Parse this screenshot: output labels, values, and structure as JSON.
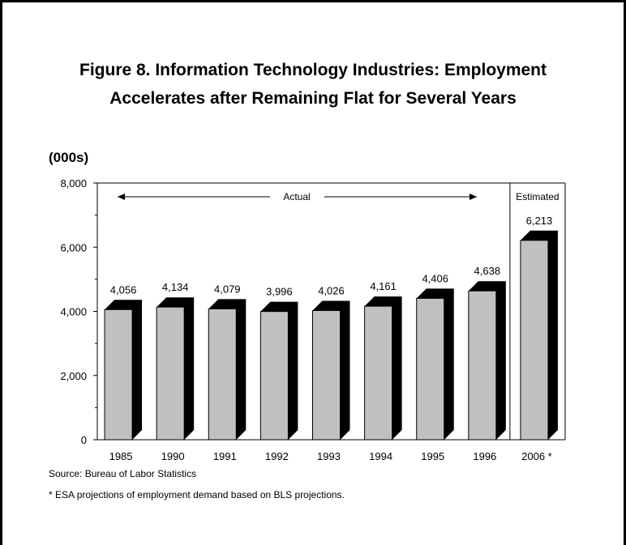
{
  "title_lines": [
    "Figure 8.  Information Technology Industries:  Employment",
    "Accelerates after Remaining Flat for Several Years"
  ],
  "source": "Source:  Bureau of Labor Statistics",
  "footnote": "* ESA projections of employment demand based on BLS projections.",
  "chart_data": {
    "type": "bar",
    "unit_label": "(000s)",
    "categories": [
      "1985",
      "1990",
      "1991",
      "1992",
      "1993",
      "1994",
      "1995",
      "1996",
      "2006 *"
    ],
    "values": [
      4056,
      4134,
      4079,
      3996,
      4026,
      4161,
      4406,
      4638,
      6213
    ],
    "value_labels": [
      "4,056",
      "4,134",
      "4,079",
      "3,996",
      "4,026",
      "4,161",
      "4,406",
      "4,638",
      "6,213"
    ],
    "ylim": [
      0,
      8000
    ],
    "yticks": [
      0,
      2000,
      4000,
      6000,
      8000
    ],
    "ytick_labels": [
      "0",
      "2,000",
      "4,000",
      "6,000",
      "8,000"
    ],
    "annotations": {
      "actual": "Actual",
      "estimated": "Estimated"
    },
    "bar_color": "#c0c0c0",
    "shadow_color": "#000000",
    "grid": false
  }
}
